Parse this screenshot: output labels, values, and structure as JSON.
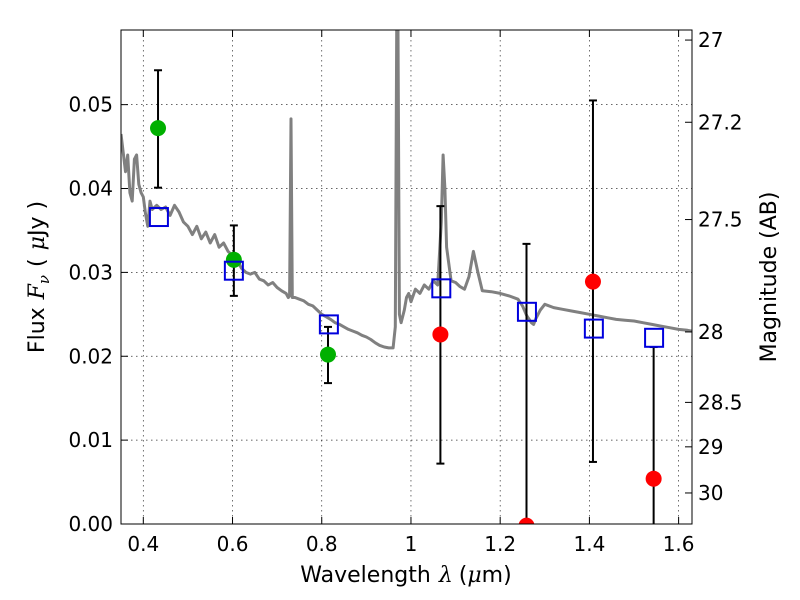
{
  "chart_data": {
    "type": "scatter",
    "xlabel_text": "Wavelength",
    "xlabel_symbol": "λ",
    "xlabel_unit_open": "(",
    "xlabel_unit_mu": "μ",
    "xlabel_unit_rest": "m)",
    "ylabel_text": "Flux",
    "ylabel_symbol": "F",
    "ylabel_sub": "ν",
    "ylabel_unit_open": "(",
    "ylabel_unit_mu": "μ",
    "ylabel_unit_rest": "Jy )",
    "y2label": "Magnitude (AB)",
    "xlim": [
      0.35,
      1.63
    ],
    "ylim": [
      0.0,
      0.0589
    ],
    "grid": true,
    "x_ticks": [
      {
        "value": 0.4,
        "label": "0.4"
      },
      {
        "value": 0.6,
        "label": "0.6"
      },
      {
        "value": 0.8,
        "label": "0.8"
      },
      {
        "value": 1.0,
        "label": "1"
      },
      {
        "value": 1.2,
        "label": "1.2"
      },
      {
        "value": 1.4,
        "label": "1.4"
      },
      {
        "value": 1.6,
        "label": "1.6"
      }
    ],
    "y_ticks": [
      {
        "value": 0.0,
        "label": "0.00"
      },
      {
        "value": 0.01,
        "label": "0.01"
      },
      {
        "value": 0.02,
        "label": "0.02"
      },
      {
        "value": 0.03,
        "label": "0.03"
      },
      {
        "value": 0.04,
        "label": "0.04"
      },
      {
        "value": 0.05,
        "label": "0.05"
      }
    ],
    "y2_ticks": [
      {
        "flux": 0.0577,
        "label": "27"
      },
      {
        "flux": 0.0479,
        "label": "27.2"
      },
      {
        "flux": 0.0363,
        "label": "27.5"
      },
      {
        "flux": 0.0229,
        "label": "28"
      },
      {
        "flux": 0.0145,
        "label": "28.5"
      },
      {
        "flux": 0.0092,
        "label": "29"
      },
      {
        "flux": 0.0037,
        "label": "30"
      }
    ],
    "sed_model": {
      "color": "#808080",
      "points": [
        [
          0.35,
          0.0465
        ],
        [
          0.36,
          0.042
        ],
        [
          0.365,
          0.044
        ],
        [
          0.37,
          0.0395
        ],
        [
          0.375,
          0.0385
        ],
        [
          0.38,
          0.0435
        ],
        [
          0.385,
          0.044
        ],
        [
          0.39,
          0.0405
        ],
        [
          0.395,
          0.0395
        ],
        [
          0.4,
          0.039
        ],
        [
          0.405,
          0.037
        ],
        [
          0.41,
          0.0355
        ],
        [
          0.415,
          0.0385
        ],
        [
          0.42,
          0.0375
        ],
        [
          0.43,
          0.038
        ],
        [
          0.44,
          0.0375
        ],
        [
          0.45,
          0.0378
        ],
        [
          0.46,
          0.0368
        ],
        [
          0.47,
          0.038
        ],
        [
          0.48,
          0.0372
        ],
        [
          0.49,
          0.036
        ],
        [
          0.5,
          0.0355
        ],
        [
          0.51,
          0.0345
        ],
        [
          0.52,
          0.0355
        ],
        [
          0.53,
          0.034
        ],
        [
          0.54,
          0.0348
        ],
        [
          0.55,
          0.0335
        ],
        [
          0.56,
          0.0345
        ],
        [
          0.57,
          0.033
        ],
        [
          0.58,
          0.0335
        ],
        [
          0.59,
          0.0325
        ],
        [
          0.6,
          0.032
        ],
        [
          0.61,
          0.0315
        ],
        [
          0.62,
          0.0305
        ],
        [
          0.63,
          0.03
        ],
        [
          0.64,
          0.0298
        ],
        [
          0.65,
          0.03
        ],
        [
          0.66,
          0.0292
        ],
        [
          0.67,
          0.029
        ],
        [
          0.68,
          0.0285
        ],
        [
          0.69,
          0.0288
        ],
        [
          0.7,
          0.0282
        ],
        [
          0.71,
          0.0278
        ],
        [
          0.72,
          0.0275
        ],
        [
          0.725,
          0.027
        ],
        [
          0.728,
          0.0272
        ],
        [
          0.731,
          0.0483
        ],
        [
          0.734,
          0.027
        ],
        [
          0.74,
          0.027
        ],
        [
          0.75,
          0.0268
        ],
        [
          0.76,
          0.0266
        ],
        [
          0.77,
          0.0262
        ],
        [
          0.78,
          0.026
        ],
        [
          0.79,
          0.0255
        ],
        [
          0.8,
          0.025
        ],
        [
          0.81,
          0.0247
        ],
        [
          0.82,
          0.0244
        ],
        [
          0.83,
          0.024
        ],
        [
          0.84,
          0.0238
        ],
        [
          0.85,
          0.0235
        ],
        [
          0.86,
          0.0232
        ],
        [
          0.87,
          0.023
        ],
        [
          0.88,
          0.0228
        ],
        [
          0.89,
          0.0225
        ],
        [
          0.9,
          0.0223
        ],
        [
          0.91,
          0.022
        ],
        [
          0.92,
          0.0216
        ],
        [
          0.93,
          0.0213
        ],
        [
          0.94,
          0.0211
        ],
        [
          0.95,
          0.021
        ],
        [
          0.96,
          0.021
        ],
        [
          0.965,
          0.0235
        ],
        [
          0.968,
          0.06
        ],
        [
          0.971,
          0.06
        ],
        [
          0.974,
          0.025
        ],
        [
          0.978,
          0.024
        ],
        [
          0.985,
          0.0255
        ],
        [
          0.99,
          0.027
        ],
        [
          0.995,
          0.0275
        ],
        [
          1.0,
          0.0265
        ],
        [
          1.01,
          0.028
        ],
        [
          1.02,
          0.0275
        ],
        [
          1.03,
          0.0285
        ],
        [
          1.04,
          0.028
        ],
        [
          1.05,
          0.029
        ],
        [
          1.06,
          0.0285
        ],
        [
          1.068,
          0.036
        ],
        [
          1.072,
          0.044
        ],
        [
          1.076,
          0.04
        ],
        [
          1.08,
          0.033
        ],
        [
          1.09,
          0.029
        ],
        [
          1.1,
          0.0288
        ],
        [
          1.11,
          0.0283
        ],
        [
          1.12,
          0.028
        ],
        [
          1.13,
          0.0295
        ],
        [
          1.14,
          0.0325
        ],
        [
          1.15,
          0.03
        ],
        [
          1.16,
          0.0278
        ],
        [
          1.18,
          0.0277
        ],
        [
          1.2,
          0.0275
        ],
        [
          1.22,
          0.0272
        ],
        [
          1.24,
          0.0268
        ],
        [
          1.25,
          0.026
        ],
        [
          1.26,
          0.0248
        ],
        [
          1.27,
          0.024
        ],
        [
          1.275,
          0.0238
        ],
        [
          1.28,
          0.0245
        ],
        [
          1.29,
          0.0255
        ],
        [
          1.3,
          0.0262
        ],
        [
          1.32,
          0.0258
        ],
        [
          1.34,
          0.0256
        ],
        [
          1.36,
          0.0254
        ],
        [
          1.38,
          0.0252
        ],
        [
          1.4,
          0.025
        ],
        [
          1.42,
          0.0248
        ],
        [
          1.44,
          0.0246
        ],
        [
          1.46,
          0.0244
        ],
        [
          1.48,
          0.0243
        ],
        [
          1.5,
          0.0242
        ],
        [
          1.52,
          0.024
        ],
        [
          1.54,
          0.0238
        ],
        [
          1.56,
          0.0236
        ],
        [
          1.58,
          0.0234
        ],
        [
          1.6,
          0.0232
        ],
        [
          1.62,
          0.0231
        ],
        [
          1.63,
          0.023
        ]
      ]
    },
    "observed": [
      {
        "x": 0.433,
        "y": 0.0472,
        "err_low": 0.0401,
        "err_high": 0.0541,
        "color": "#00b000"
      },
      {
        "x": 0.603,
        "y": 0.0315,
        "err_low": 0.0272,
        "err_high": 0.0356,
        "color": "#00b000"
      },
      {
        "x": 0.814,
        "y": 0.0202,
        "err_low": 0.0168,
        "err_high": 0.0235,
        "color": "#00b000"
      },
      {
        "x": 1.066,
        "y": 0.0226,
        "err_low": 0.0072,
        "err_high": 0.0379,
        "color": "#ff0000"
      },
      {
        "x": 1.259,
        "y": -0.0002,
        "err_low": -0.001,
        "err_high": 0.0334,
        "color": "#ff0000"
      },
      {
        "x": 1.408,
        "y": 0.0289,
        "err_low": 0.0074,
        "err_high": 0.0505,
        "color": "#ff0000"
      },
      {
        "x": 1.544,
        "y": 0.0054,
        "err_low": -0.001,
        "err_high": 0.0211,
        "color": "#ff0000"
      }
    ],
    "model_photometry": [
      {
        "x": 0.435,
        "y": 0.0366
      },
      {
        "x": 0.603,
        "y": 0.0302
      },
      {
        "x": 0.816,
        "y": 0.0238
      },
      {
        "x": 1.068,
        "y": 0.0281
      },
      {
        "x": 1.26,
        "y": 0.0253
      },
      {
        "x": 1.41,
        "y": 0.0233
      },
      {
        "x": 1.545,
        "y": 0.0222
      }
    ],
    "model_marker_color": "#0000dd"
  }
}
